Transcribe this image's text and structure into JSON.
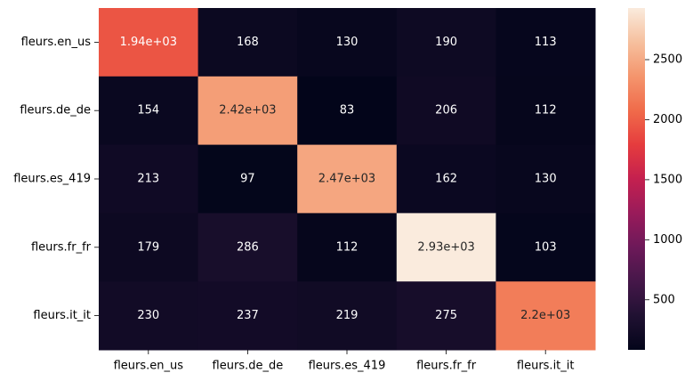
{
  "chart_data": {
    "type": "heatmap",
    "title": "",
    "xlabel": "",
    "ylabel": "",
    "rows": [
      "fleurs.en_us",
      "fleurs.de_de",
      "fleurs.es_419",
      "fleurs.fr_fr",
      "fleurs.it_it"
    ],
    "columns": [
      "fleurs.en_us",
      "fleurs.de_de",
      "fleurs.es_419",
      "fleurs.fr_fr",
      "fleurs.it_it"
    ],
    "values": [
      [
        1940,
        168,
        130,
        190,
        113
      ],
      [
        154,
        2420,
        83,
        206,
        112
      ],
      [
        213,
        97,
        2470,
        162,
        130
      ],
      [
        179,
        286,
        112,
        2930,
        103
      ],
      [
        230,
        237,
        219,
        275,
        2200
      ]
    ],
    "cell_labels": [
      [
        "1.94e+03",
        "168",
        "130",
        "190",
        "113"
      ],
      [
        "154",
        "2.42e+03",
        "83",
        "206",
        "112"
      ],
      [
        "213",
        "97",
        "2.47e+03",
        "162",
        "130"
      ],
      [
        "179",
        "286",
        "112",
        "2.93e+03",
        "103"
      ],
      [
        "230",
        "237",
        "219",
        "275",
        "2.2e+03"
      ]
    ],
    "colorscale": "rocket",
    "colorbar": {
      "range": [
        83,
        2930
      ],
      "ticks": [
        500,
        1000,
        1500,
        2000,
        2500
      ],
      "tick_labels": [
        "500",
        "1000",
        "1500",
        "2000",
        "2500"
      ]
    }
  }
}
